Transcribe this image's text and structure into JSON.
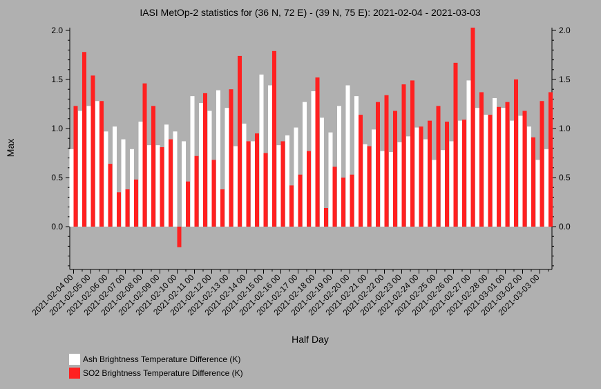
{
  "chart_data": {
    "type": "bar",
    "title": "IASI MetOp-2 statistics for (36 N, 72 E) - (39 N, 75 E): 2021-02-04 - 2021-03-03",
    "xlabel": "Half Day",
    "ylabel": "Max",
    "ylim": [
      -0.44,
      2.03
    ],
    "yticks": [
      0.0,
      0.5,
      1.0,
      1.5,
      2.0
    ],
    "ytick_labels": [
      "0.0",
      "0.5",
      "1.0",
      "1.5",
      "2.0"
    ],
    "grid": false,
    "legend_position": "bottom-left",
    "categories": [
      "2021-02-04 00",
      "2021-02-04 12",
      "2021-02-05 00",
      "2021-02-05 12",
      "2021-02-06 00",
      "2021-02-06 12",
      "2021-02-07 00",
      "2021-02-07 12",
      "2021-02-08 00",
      "2021-02-08 12",
      "2021-02-09 00",
      "2021-02-09 12",
      "2021-02-10 00",
      "2021-02-10 12",
      "2021-02-11 00",
      "2021-02-11 12",
      "2021-02-12 00",
      "2021-02-12 12",
      "2021-02-13 00",
      "2021-02-13 12",
      "2021-02-14 00",
      "2021-02-14 12",
      "2021-02-15 00",
      "2021-02-15 12",
      "2021-02-16 00",
      "2021-02-16 12",
      "2021-02-17 00",
      "2021-02-17 12",
      "2021-02-18 00",
      "2021-02-18 12",
      "2021-02-19 00",
      "2021-02-19 12",
      "2021-02-20 00",
      "2021-02-20 12",
      "2021-02-21 00",
      "2021-02-21 12",
      "2021-02-22 00",
      "2021-02-22 12",
      "2021-02-23 00",
      "2021-02-23 12",
      "2021-02-24 00",
      "2021-02-24 12",
      "2021-02-25 00",
      "2021-02-25 12",
      "2021-02-26 00",
      "2021-02-26 12",
      "2021-02-27 00",
      "2021-02-27 12",
      "2021-02-28 00",
      "2021-02-28 12",
      "2021-03-01 00",
      "2021-03-01 12",
      "2021-03-02 00",
      "2021-03-02 12",
      "2021-03-03 00",
      "2021-03-03 12"
    ],
    "x_tick_labels": [
      "2021-02-04 00",
      "2021-02-05 00",
      "2021-02-06 00",
      "2021-02-07 00",
      "2021-02-08 00",
      "2021-02-09 00",
      "2021-02-10 00",
      "2021-02-11 00",
      "2021-02-12 00",
      "2021-02-13 00",
      "2021-02-14 00",
      "2021-02-15 00",
      "2021-02-16 00",
      "2021-02-17 00",
      "2021-02-18 00",
      "2021-02-19 00",
      "2021-02-20 00",
      "2021-02-21 00",
      "2021-02-22 00",
      "2021-02-23 00",
      "2021-02-24 00",
      "2021-02-25 00",
      "2021-02-26 00",
      "2021-02-27 00",
      "2021-02-28 00",
      "2021-03-01 00",
      "2021-03-02 00",
      "2021-03-03 00"
    ],
    "series": [
      {
        "name": "Ash Brightness Temperature Difference (K)",
        "color": "#ffffff",
        "values": [
          0.79,
          1.18,
          1.23,
          1.28,
          0.97,
          1.02,
          0.89,
          0.79,
          1.07,
          0.83,
          0.83,
          1.04,
          0.97,
          0.87,
          1.33,
          1.26,
          1.18,
          1.39,
          1.21,
          0.82,
          1.05,
          0.87,
          1.55,
          1.44,
          0.83,
          0.93,
          1.01,
          1.27,
          1.38,
          1.11,
          0.96,
          1.23,
          1.44,
          1.33,
          0.84,
          0.99,
          0.77,
          0.76,
          0.86,
          0.92,
          1.01,
          0.89,
          0.68,
          0.78,
          0.87,
          1.08,
          1.49,
          1.21,
          1.14,
          1.31,
          1.21,
          1.08,
          1.13,
          1.02,
          0.68,
          0.79
        ]
      },
      {
        "name": "SO2 Brightness Temperature Difference (K)",
        "color": "#ff2020",
        "values": [
          1.23,
          1.78,
          1.54,
          1.28,
          0.64,
          0.35,
          0.38,
          0.48,
          1.46,
          1.23,
          0.81,
          0.89,
          -0.21,
          0.46,
          0.72,
          1.36,
          0.68,
          0.38,
          1.4,
          1.74,
          0.87,
          0.95,
          0.75,
          1.79,
          0.87,
          0.42,
          0.53,
          0.77,
          1.52,
          0.19,
          0.61,
          0.5,
          0.53,
          1.14,
          0.82,
          1.27,
          1.34,
          1.18,
          1.45,
          1.49,
          1.02,
          1.08,
          1.23,
          1.07,
          1.67,
          1.09,
          2.04,
          1.37,
          1.14,
          1.22,
          1.27,
          1.5,
          1.18,
          0.91,
          1.28,
          1.37
        ]
      }
    ]
  }
}
